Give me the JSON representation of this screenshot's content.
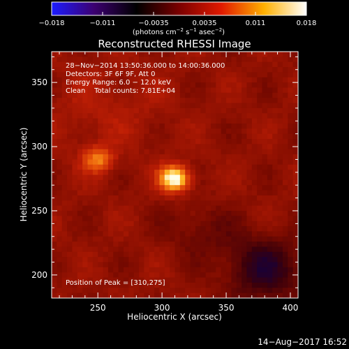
{
  "colorbar": {
    "ticks": [
      "−0.018",
      "−0.011",
      "−0.0035",
      "0.0035",
      "0.011",
      "0.018"
    ],
    "unit_label_parts": [
      "(photons cm",
      "−2",
      " s",
      "−1",
      " asec",
      "−2",
      ")"
    ],
    "colors": [
      "#1c1cff",
      "#3c0070",
      "#000000",
      "#7a0000",
      "#e01a00",
      "#ffb000",
      "#ffffff"
    ]
  },
  "chart_data": {
    "type": "heatmap",
    "title": "Reconstructed RHESSI Image",
    "xlabel": "Heliocentric X (arcsec)",
    "ylabel": "Heliocentric Y (arcsec)",
    "xlim": [
      214,
      406
    ],
    "ylim": [
      182,
      374
    ],
    "xticks": [
      250,
      300,
      350,
      400
    ],
    "yticks": [
      200,
      250,
      300,
      350
    ],
    "xtick_labels": [
      "250",
      "300",
      "350",
      "400"
    ],
    "ytick_labels": [
      "200",
      "250",
      "300",
      "350"
    ],
    "sources": [
      {
        "x": 310,
        "y": 275,
        "relative_intensity": 1.0
      },
      {
        "x": 250,
        "y": 290,
        "relative_intensity": 0.55
      }
    ],
    "info_lines": [
      "28−Nov−2014 13:50:36.000 to 14:00:36.000",
      "Detectors: 3F 6F 9F, Att 0",
      "Energy Range: 6.0 − 12.0 keV",
      "Clean    Total counts: 7.81E+04"
    ],
    "peak_label": "Position of Peak = [310,275]"
  },
  "footer": {
    "date": "14−Aug−2017 16:52"
  }
}
